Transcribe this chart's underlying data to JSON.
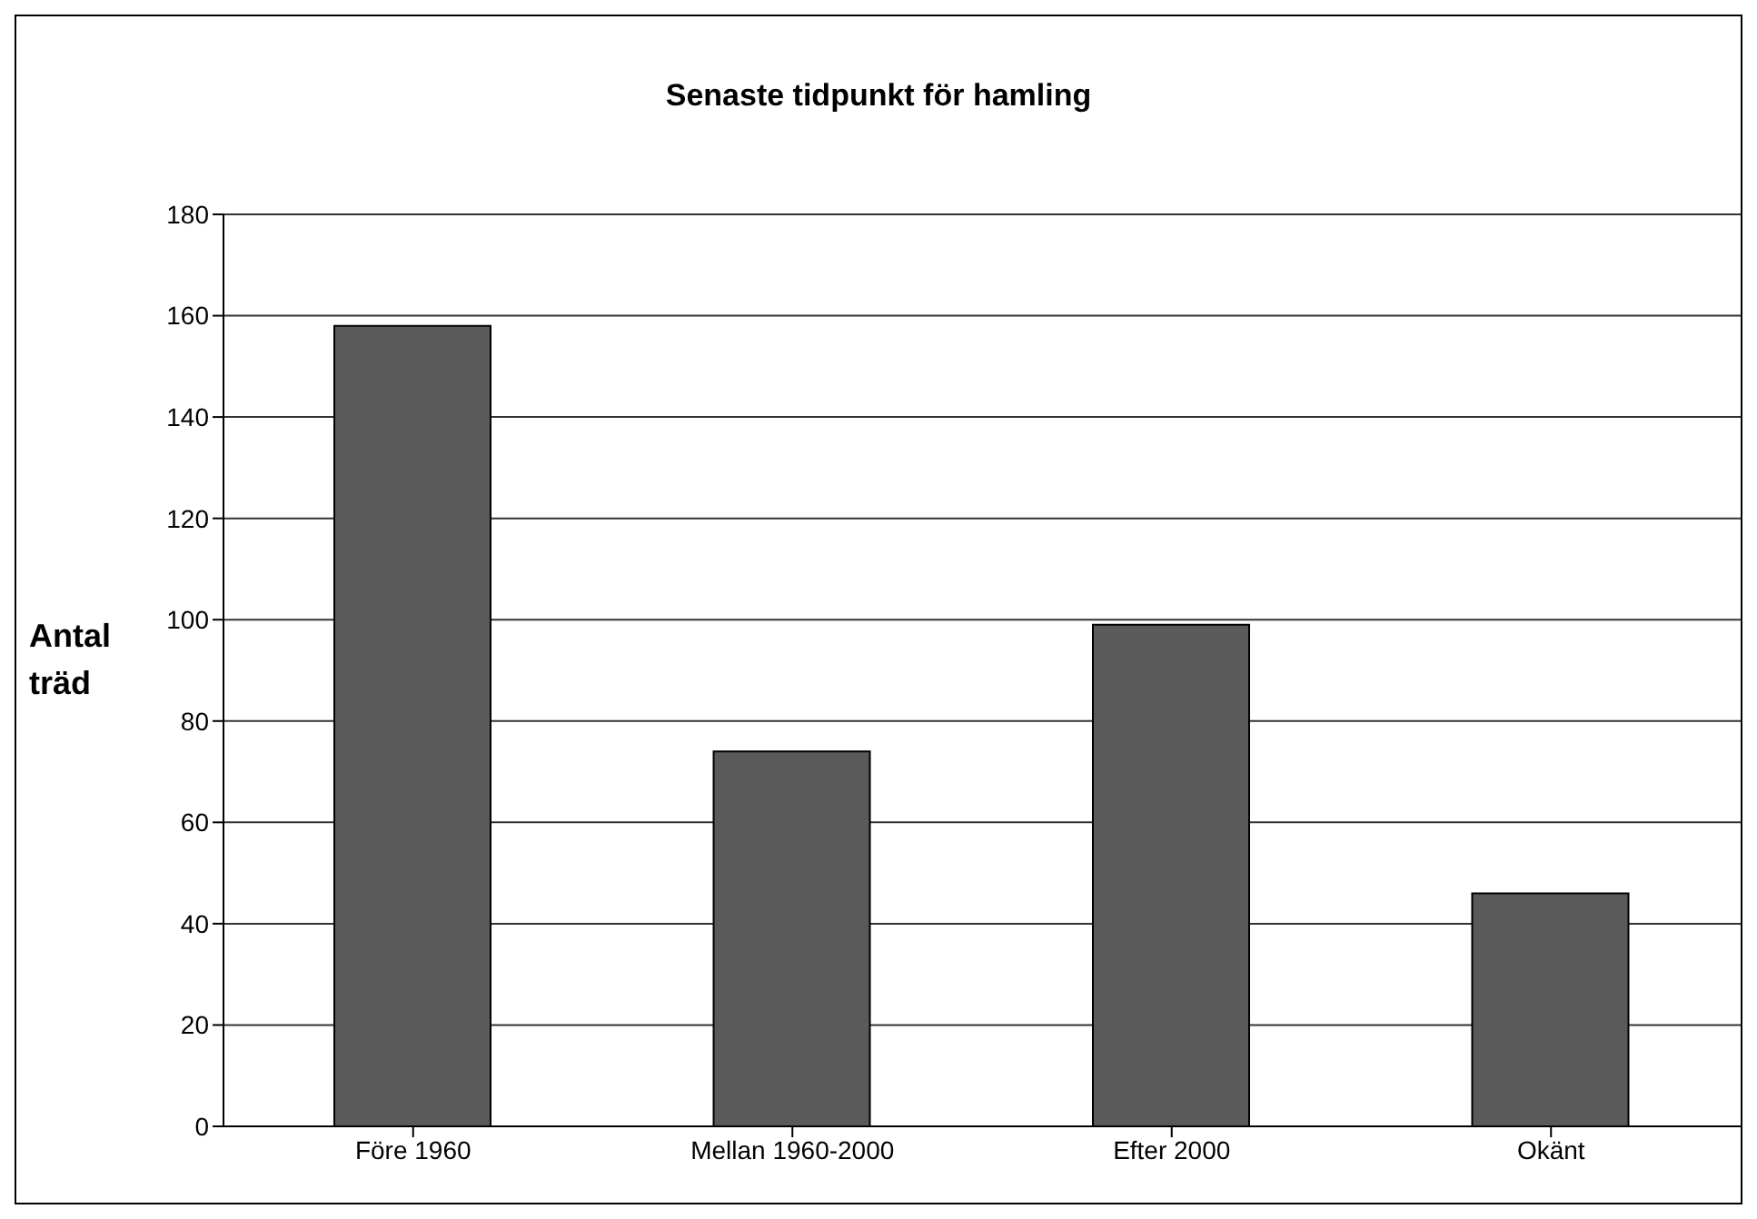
{
  "chart_data": {
    "type": "bar",
    "title": "Senaste tidpunkt för hamling",
    "ylabel": "Antal träd",
    "categories": [
      "Före 1960",
      "Mellan 1960-2000",
      "Efter 2000",
      "Okänt"
    ],
    "values": [
      158,
      74,
      99,
      46
    ],
    "color": "#5a5a5a",
    "ylim": [
      0,
      180
    ],
    "yticks": [
      0,
      20,
      40,
      60,
      80,
      100,
      120,
      140,
      160,
      180
    ],
    "grid": "y"
  }
}
